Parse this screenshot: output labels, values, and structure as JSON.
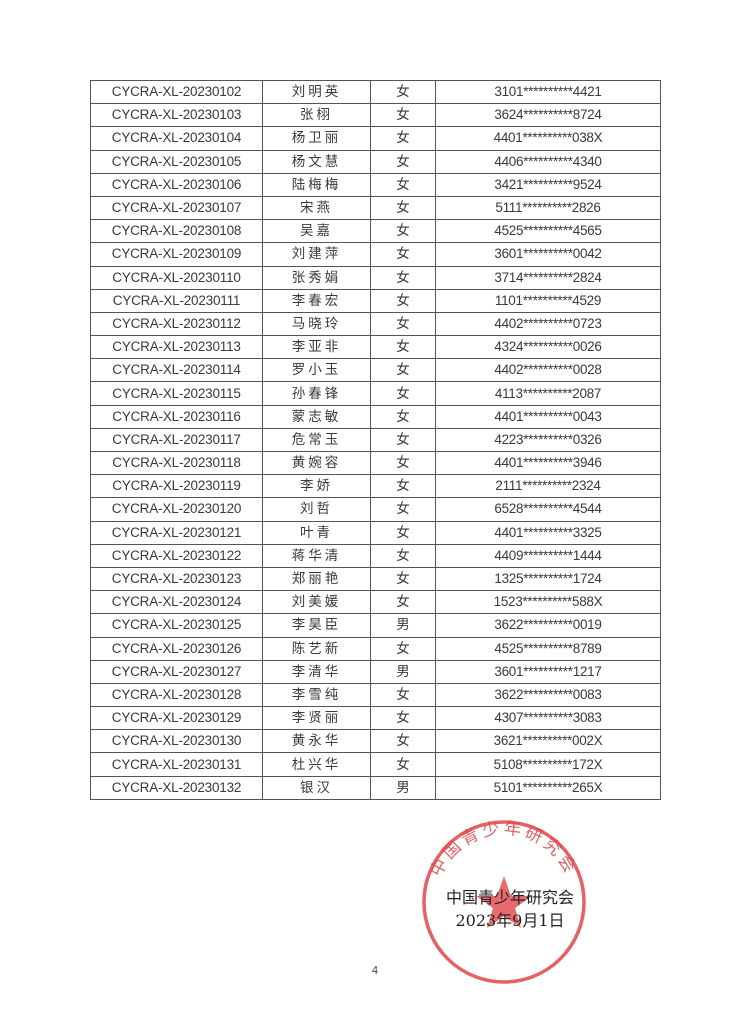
{
  "table": {
    "rows": [
      [
        "CYCRA-XL-20230102",
        "刘明英",
        "女",
        "3101**********4421"
      ],
      [
        "CYCRA-XL-20230103",
        "张栩",
        "女",
        "3624**********8724"
      ],
      [
        "CYCRA-XL-20230104",
        "杨卫丽",
        "女",
        "4401**********038X"
      ],
      [
        "CYCRA-XL-20230105",
        "杨文慧",
        "女",
        "4406**********4340"
      ],
      [
        "CYCRA-XL-20230106",
        "陆梅梅",
        "女",
        "3421**********9524"
      ],
      [
        "CYCRA-XL-20230107",
        "宋燕",
        "女",
        "5111**********2826"
      ],
      [
        "CYCRA-XL-20230108",
        "吴嘉",
        "女",
        "4525**********4565"
      ],
      [
        "CYCRA-XL-20230109",
        "刘建萍",
        "女",
        "3601**********0042"
      ],
      [
        "CYCRA-XL-20230110",
        "张秀娟",
        "女",
        "3714**********2824"
      ],
      [
        "CYCRA-XL-20230111",
        "李春宏",
        "女",
        "1101**********4529"
      ],
      [
        "CYCRA-XL-20230112",
        "马晓玲",
        "女",
        "4402**********0723"
      ],
      [
        "CYCRA-XL-20230113",
        "李亚非",
        "女",
        "4324**********0026"
      ],
      [
        "CYCRA-XL-20230114",
        "罗小玉",
        "女",
        "4402**********0028"
      ],
      [
        "CYCRA-XL-20230115",
        "孙春锋",
        "女",
        "4113**********2087"
      ],
      [
        "CYCRA-XL-20230116",
        "蒙志敏",
        "女",
        "4401**********0043"
      ],
      [
        "CYCRA-XL-20230117",
        "危常玉",
        "女",
        "4223**********0326"
      ],
      [
        "CYCRA-XL-20230118",
        "黄婉容",
        "女",
        "4401**********3946"
      ],
      [
        "CYCRA-XL-20230119",
        "李娇",
        "女",
        "2111**********2324"
      ],
      [
        "CYCRA-XL-20230120",
        "刘哲",
        "女",
        "6528**********4544"
      ],
      [
        "CYCRA-XL-20230121",
        "叶青",
        "女",
        "4401**********3325"
      ],
      [
        "CYCRA-XL-20230122",
        "蒋华清",
        "女",
        "4409**********1444"
      ],
      [
        "CYCRA-XL-20230123",
        "郑丽艳",
        "女",
        "1325**********1724"
      ],
      [
        "CYCRA-XL-20230124",
        "刘美媛",
        "女",
        "1523**********588X"
      ],
      [
        "CYCRA-XL-20230125",
        "李昊臣",
        "男",
        "3622**********0019"
      ],
      [
        "CYCRA-XL-20230126",
        "陈艺新",
        "女",
        "4525**********8789"
      ],
      [
        "CYCRA-XL-20230127",
        "李清华",
        "男",
        "3601**********1217"
      ],
      [
        "CYCRA-XL-20230128",
        "李雪纯",
        "女",
        "3622**********0083"
      ],
      [
        "CYCRA-XL-20230129",
        "李贤丽",
        "女",
        "4307**********3083"
      ],
      [
        "CYCRA-XL-20230130",
        "黄永华",
        "女",
        "3621**********002X"
      ],
      [
        "CYCRA-XL-20230131",
        "杜兴华",
        "女",
        "5108**********172X"
      ],
      [
        "CYCRA-XL-20230132",
        "银汉",
        "男",
        "5101**********265X"
      ]
    ]
  },
  "signature": {
    "organization": "中国青少年研究会",
    "date": "2023年9月1日",
    "seal_text": "中国青少年研究会",
    "seal_color": "#e0454a"
  },
  "page_number": "4"
}
